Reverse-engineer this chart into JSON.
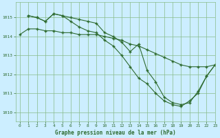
{
  "title": "Graphe pression niveau de la mer (hPa)",
  "background_color": "#cceeff",
  "plot_bg_color": "#cceeff",
  "grid_color": "#88bb88",
  "line_color": "#2d6a2d",
  "marker_color": "#2d6a2d",
  "ylim": [
    1009.5,
    1015.8
  ],
  "xlim": [
    -0.5,
    23
  ],
  "yticks": [
    1010,
    1011,
    1012,
    1013,
    1014,
    1015
  ],
  "xticks": [
    0,
    1,
    2,
    3,
    4,
    5,
    6,
    7,
    8,
    9,
    10,
    11,
    12,
    13,
    14,
    15,
    16,
    17,
    18,
    19,
    20,
    21,
    22,
    23
  ],
  "series1_x": [
    0,
    1,
    2,
    3,
    4,
    5,
    6,
    7,
    8,
    9,
    10,
    11,
    12,
    13,
    14,
    15,
    16,
    17,
    18,
    19,
    20,
    21,
    22,
    23
  ],
  "series1_y": [
    1014.1,
    1014.4,
    1014.4,
    1014.3,
    1014.3,
    1014.2,
    1014.2,
    1014.1,
    1014.1,
    1014.1,
    1014.0,
    1013.9,
    1013.8,
    1013.6,
    1013.5,
    1013.3,
    1013.1,
    1012.9,
    1012.7,
    1012.5,
    1012.4,
    1012.4,
    1012.4,
    1012.5
  ],
  "series2_x": [
    1,
    2,
    3,
    4,
    5,
    6,
    7,
    8,
    9,
    10,
    11,
    12,
    13,
    14,
    15,
    16,
    17,
    18,
    19,
    20,
    21,
    22,
    23
  ],
  "series2_y": [
    1015.1,
    1015.0,
    1014.8,
    1015.2,
    1015.1,
    1014.8,
    1014.5,
    1014.3,
    1014.2,
    1013.8,
    1013.5,
    1013.0,
    1012.4,
    1011.8,
    1011.5,
    1011.0,
    1010.6,
    1010.4,
    1010.3,
    1010.6,
    1011.0,
    1011.9,
    1012.5
  ],
  "series3_x": [
    1,
    2,
    3,
    4,
    5,
    6,
    7,
    8,
    9,
    10,
    11,
    12,
    13,
    14,
    15,
    16,
    17,
    18,
    19,
    20,
    21,
    22,
    23
  ],
  "series3_y": [
    1015.1,
    1015.0,
    1014.8,
    1015.2,
    1015.1,
    1015.0,
    1014.9,
    1014.8,
    1014.7,
    1014.2,
    1014.0,
    1013.7,
    1013.2,
    1013.6,
    1012.2,
    1011.6,
    1010.8,
    1010.5,
    1010.4,
    1010.5,
    1011.1,
    1011.9,
    1012.5
  ]
}
